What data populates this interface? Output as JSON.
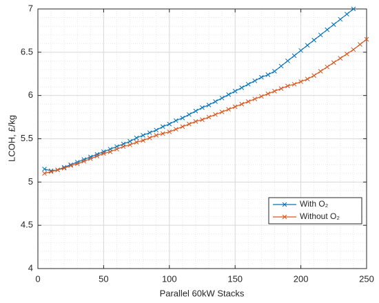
{
  "chart_data": {
    "type": "line",
    "xlabel": "Parallel 60kW Stacks",
    "ylabel": "LCOH, £/kg",
    "xlim": [
      0,
      250
    ],
    "xticks": [
      0,
      50,
      100,
      150,
      200,
      250
    ],
    "ylim": [
      4,
      7
    ],
    "yticks": [
      4,
      4.5,
      5,
      5.5,
      6,
      6.5,
      7
    ],
    "grid": true,
    "minor_grid": true,
    "legend": "southeast",
    "marker": "x",
    "series": [
      {
        "name": "With O₂",
        "color": "#0072bd",
        "x": [
          5,
          10,
          15,
          20,
          25,
          30,
          35,
          40,
          45,
          50,
          55,
          60,
          65,
          70,
          75,
          80,
          85,
          90,
          95,
          100,
          105,
          110,
          115,
          120,
          125,
          130,
          135,
          140,
          145,
          150,
          155,
          160,
          165,
          170,
          175,
          180,
          185,
          190,
          195,
          200,
          205,
          210,
          215,
          220,
          225,
          230,
          235,
          240
        ],
        "values": [
          5.15,
          5.13,
          5.14,
          5.17,
          5.2,
          5.23,
          5.26,
          5.29,
          5.32,
          5.35,
          5.38,
          5.41,
          5.44,
          5.47,
          5.51,
          5.54,
          5.57,
          5.6,
          5.64,
          5.67,
          5.71,
          5.74,
          5.78,
          5.82,
          5.86,
          5.89,
          5.93,
          5.97,
          6.01,
          6.05,
          6.09,
          6.13,
          6.17,
          6.21,
          6.24,
          6.28,
          6.34,
          6.4,
          6.46,
          6.52,
          6.58,
          6.64,
          6.7,
          6.76,
          6.82,
          6.88,
          6.94,
          7.0
        ]
      },
      {
        "name": "Without O₂",
        "color": "#d95319",
        "x": [
          5,
          10,
          15,
          20,
          25,
          30,
          35,
          40,
          45,
          50,
          55,
          60,
          65,
          70,
          75,
          80,
          85,
          90,
          95,
          100,
          105,
          110,
          115,
          120,
          125,
          130,
          135,
          140,
          145,
          150,
          155,
          160,
          165,
          170,
          175,
          180,
          185,
          190,
          195,
          200,
          205,
          210,
          215,
          220,
          225,
          230,
          235,
          240,
          245,
          250
        ],
        "values": [
          5.1,
          5.12,
          5.14,
          5.16,
          5.19,
          5.21,
          5.24,
          5.27,
          5.3,
          5.33,
          5.35,
          5.38,
          5.41,
          5.43,
          5.46,
          5.48,
          5.51,
          5.54,
          5.56,
          5.58,
          5.61,
          5.64,
          5.67,
          5.7,
          5.72,
          5.75,
          5.78,
          5.81,
          5.84,
          5.87,
          5.9,
          5.93,
          5.96,
          5.99,
          6.02,
          6.05,
          6.08,
          6.11,
          6.13,
          6.16,
          6.19,
          6.23,
          6.28,
          6.33,
          6.38,
          6.43,
          6.48,
          6.53,
          6.59,
          6.65
        ]
      }
    ]
  }
}
